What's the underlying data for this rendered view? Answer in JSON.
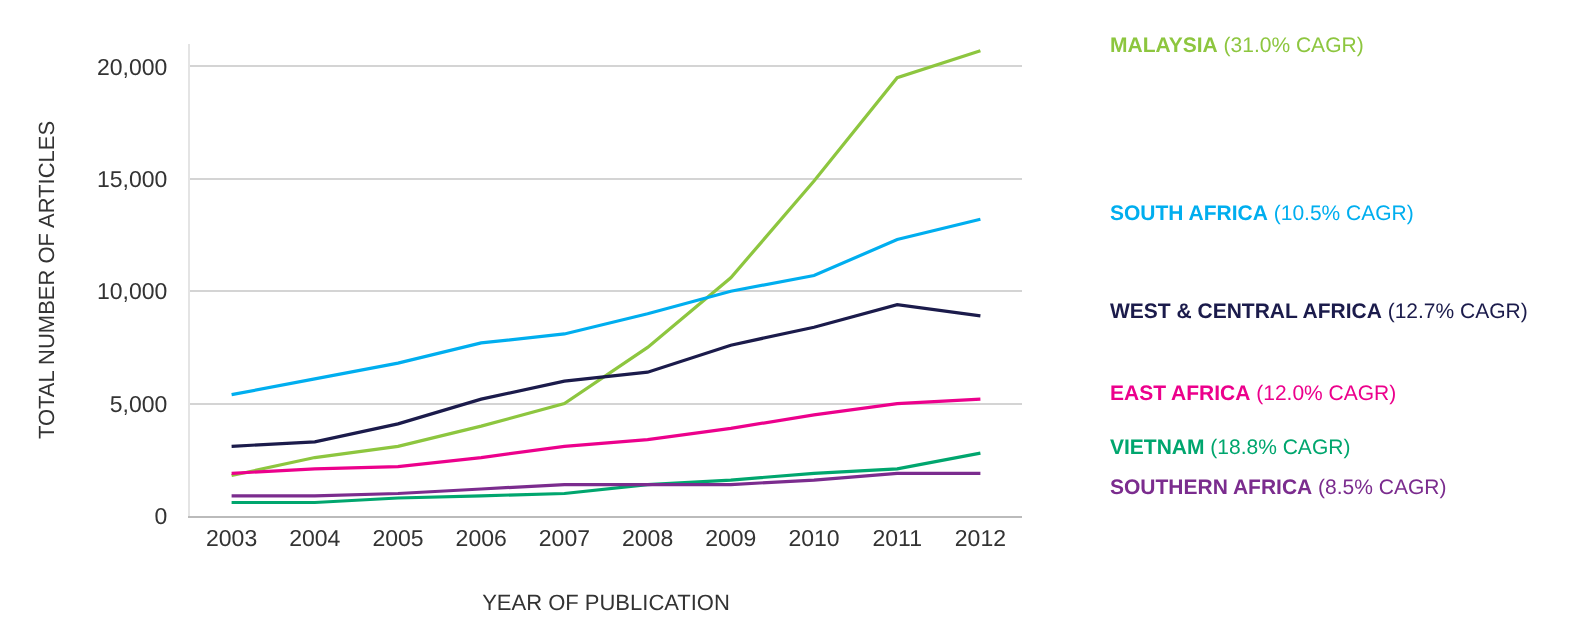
{
  "chart_data": {
    "type": "line",
    "xlabel": "YEAR OF PUBLICATION",
    "ylabel": "TOTAL NUMBER OF ARTICLES",
    "categories": [
      "2003",
      "2004",
      "2005",
      "2006",
      "2007",
      "2008",
      "2009",
      "2010",
      "2011",
      "2012"
    ],
    "ylim": [
      0,
      21000
    ],
    "yticks": [
      {
        "value": 0,
        "label": "0"
      },
      {
        "value": 5000,
        "label": "5,000"
      },
      {
        "value": 10000,
        "label": "10,000"
      },
      {
        "value": 15000,
        "label": "15,000"
      },
      {
        "value": 20000,
        "label": "20,000"
      }
    ],
    "grid": "y",
    "legend": false,
    "marker": "none",
    "line_style": "solid",
    "series": [
      {
        "name": "MALAYSIA (31.0% CAGR)",
        "color": "#8dc63f",
        "values": [
          1800,
          2600,
          3100,
          4000,
          5000,
          7500,
          10600,
          14900,
          19500,
          20700
        ]
      },
      {
        "name": "SOUTH AFRICA (10.5% CAGR)",
        "color": "#00aeef",
        "values": [
          5400,
          6100,
          6800,
          7700,
          8100,
          9000,
          10000,
          10700,
          12300,
          13200
        ]
      },
      {
        "name": "WEST & CENTRAL AFRICA (12.7% CAGR)",
        "color": "#1b1b4b",
        "values": [
          3100,
          3300,
          4100,
          5200,
          6000,
          6400,
          7600,
          8400,
          9400,
          8900
        ]
      },
      {
        "name": "EAST AFRICA (12.0% CAGR)",
        "color": "#ec008c",
        "values": [
          1900,
          2100,
          2200,
          2600,
          3100,
          3400,
          3900,
          4500,
          5000,
          5200
        ]
      },
      {
        "name": "VIETNAM (18.8% CAGR)",
        "color": "#00a66e",
        "values": [
          600,
          600,
          800,
          900,
          1000,
          1400,
          1600,
          1900,
          2100,
          2800
        ]
      },
      {
        "name": "SOUTHERN AFRICA (8.5% CAGR)",
        "color": "#7b2c8e",
        "values": [
          900,
          900,
          1000,
          1200,
          1400,
          1400,
          1400,
          1600,
          1900,
          1900
        ]
      }
    ]
  }
}
